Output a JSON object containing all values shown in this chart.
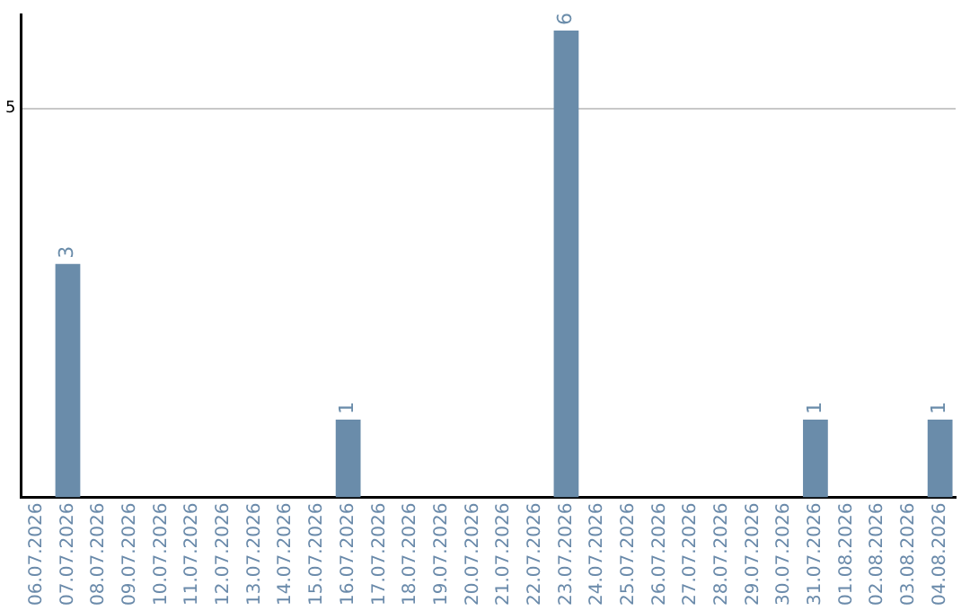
{
  "chart_data": {
    "type": "bar",
    "categories": [
      "06.07.2026",
      "07.07.2026",
      "08.07.2026",
      "09.07.2026",
      "10.07.2026",
      "11.07.2026",
      "12.07.2026",
      "13.07.2026",
      "14.07.2026",
      "15.07.2026",
      "16.07.2026",
      "17.07.2026",
      "18.07.2026",
      "19.07.2026",
      "20.07.2026",
      "21.07.2026",
      "22.07.2026",
      "23.07.2026",
      "24.07.2026",
      "25.07.2026",
      "26.07.2026",
      "27.07.2026",
      "28.07.2026",
      "29.07.2026",
      "30.07.2026",
      "31.07.2026",
      "01.08.2026",
      "02.08.2026",
      "03.08.2026",
      "04.08.2026"
    ],
    "values": [
      0,
      3,
      0,
      0,
      0,
      0,
      0,
      0,
      0,
      0,
      1,
      0,
      0,
      0,
      0,
      0,
      0,
      6,
      0,
      0,
      0,
      0,
      0,
      0,
      0,
      1,
      0,
      0,
      0,
      1
    ],
    "color": "#6a8caa",
    "value_labels": [
      null,
      "3",
      null,
      null,
      null,
      null,
      null,
      null,
      null,
      null,
      "1",
      null,
      null,
      null,
      null,
      null,
      null,
      "6",
      null,
      null,
      null,
      null,
      null,
      null,
      null,
      "1",
      null,
      null,
      null,
      "1"
    ],
    "ylim": [
      0,
      6.2
    ],
    "yticks": [
      5
    ],
    "grid": "y"
  }
}
